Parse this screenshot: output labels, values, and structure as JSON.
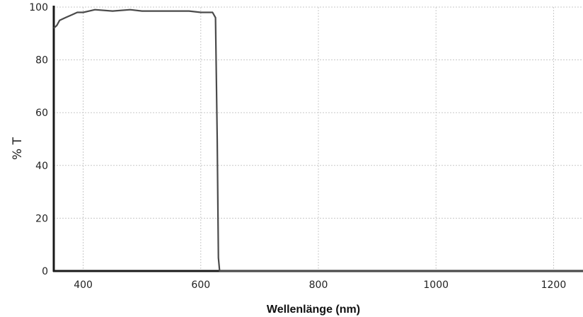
{
  "chart_data": {
    "type": "line",
    "xlabel": "Wellenlänge (nm)",
    "ylabel": "% T",
    "xlim": [
      350,
      1250
    ],
    "ylim": [
      0,
      100
    ],
    "x_ticks": [
      400,
      600,
      800,
      1000,
      1200
    ],
    "y_ticks": [
      0,
      20,
      40,
      60,
      80,
      100
    ],
    "grid": true,
    "series": [
      {
        "x": [
          350,
          355,
          360,
          370,
          380,
          390,
          400,
          420,
          450,
          480,
          500,
          520,
          550,
          580,
          600,
          620,
          625,
          628,
          630,
          632,
          640,
          700,
          800,
          900,
          1000,
          1100,
          1200,
          1250
        ],
        "values": [
          92,
          93,
          95,
          96,
          97,
          98,
          98,
          99,
          98.5,
          99,
          98.5,
          98.5,
          98.5,
          98.5,
          98,
          98,
          96,
          50,
          5,
          0,
          0,
          0,
          0,
          0,
          0,
          0,
          0,
          0
        ]
      }
    ]
  }
}
